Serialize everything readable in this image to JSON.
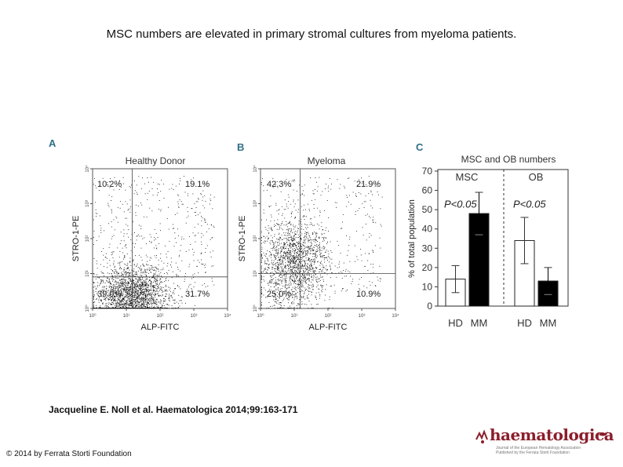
{
  "slide": {
    "title": "MSC numbers are elevated in primary stromal cultures from myeloma patients.",
    "citation": "Jacqueline E. Noll et al. Haematologica 2014;99:163-171",
    "copyright": "© 2014 by Ferrata Storti Foundation"
  },
  "logo": {
    "wordmark": "haematologica",
    "sub1": "Journal of the European Hematology Association",
    "sub2": "Published by the Ferrata Storti Foundation"
  },
  "colors": {
    "panel_letter": "#2f6f86",
    "logo": "#8b1e2b",
    "bar_mm": "#000000",
    "bar_hd": "#ffffff"
  },
  "chart_data": [
    {
      "type": "scatter",
      "panel": "A",
      "title": "Healthy Donor",
      "xlabel": "ALP-FITC",
      "ylabel": "STRO-1-PE",
      "scale": "log",
      "xlim": [
        1,
        10000
      ],
      "ylim": [
        1,
        10000
      ],
      "x_ticks": [
        "10⁰",
        "10¹",
        "10²",
        "10³",
        "10⁴"
      ],
      "y_ticks": [
        "10⁰",
        "10¹",
        "10²",
        "10³",
        "10⁴"
      ],
      "gates": {
        "x": 15,
        "y": 8
      },
      "quadrants": {
        "top_left": "10.2%",
        "top_right": "19.1%",
        "bottom_left": "39.0%",
        "bottom_right": "31.7%"
      }
    },
    {
      "type": "scatter",
      "panel": "B",
      "title": "Myeloma",
      "xlabel": "ALP-FITC",
      "ylabel": "STRO-1-PE",
      "scale": "log",
      "xlim": [
        1,
        10000
      ],
      "ylim": [
        1,
        10000
      ],
      "x_ticks": [
        "10⁰",
        "10¹",
        "10²",
        "10³",
        "10⁴"
      ],
      "y_ticks": [
        "10⁰",
        "10¹",
        "10²",
        "10³",
        "10⁴"
      ],
      "gates": {
        "x": 15,
        "y": 10
      },
      "quadrants": {
        "top_left": "42.3%",
        "top_right": "21.9%",
        "bottom_left": "25.0%",
        "bottom_right": "10.9%"
      }
    },
    {
      "type": "bar",
      "panel": "C",
      "title": "MSC and OB numbers",
      "ylabel": "% of total population",
      "ylim": [
        0,
        70
      ],
      "yticks": [
        0,
        10,
        20,
        30,
        40,
        50,
        60,
        70
      ],
      "groups": [
        {
          "name": "MSC",
          "pvalue": "P<0.05",
          "bars": [
            {
              "label": "HD",
              "value": 14,
              "error": 7,
              "fill": "white"
            },
            {
              "label": "MM",
              "value": 48,
              "error": 11,
              "fill": "black"
            }
          ]
        },
        {
          "name": "OB",
          "pvalue": "P<0.05",
          "bars": [
            {
              "label": "HD",
              "value": 34,
              "error": 12,
              "fill": "white"
            },
            {
              "label": "MM",
              "value": 13,
              "error": 7,
              "fill": "black"
            }
          ]
        }
      ]
    }
  ]
}
